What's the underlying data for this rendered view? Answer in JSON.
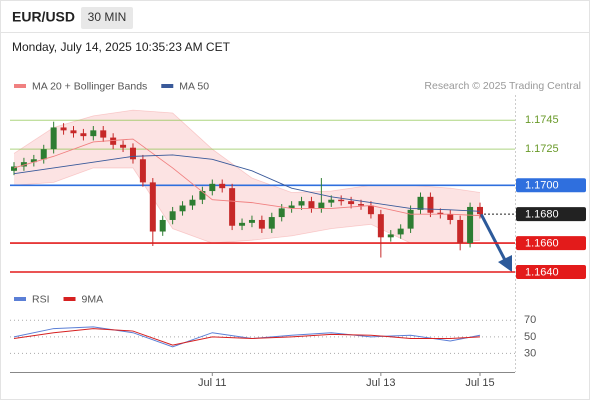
{
  "chart_data": {
    "type": "candlestick",
    "title": "EUR/USD",
    "timeframe": "30 MIN",
    "subtitle": "Monday, July 14, 2025 10:35:23 AM CET",
    "source": "Research © 2025 Trading Central",
    "categories": [
      null,
      null,
      null,
      null,
      null,
      null,
      null,
      null,
      null,
      null,
      null,
      null,
      null,
      null,
      null,
      null,
      null,
      null,
      null,
      null,
      "Jul 11",
      null,
      null,
      null,
      null,
      null,
      null,
      null,
      null,
      null,
      null,
      null,
      null,
      null,
      null,
      null,
      null,
      "Jul 13",
      null,
      null,
      null,
      null,
      null,
      null,
      null,
      null,
      null,
      "Jul 15"
    ],
    "open": [
      1.171,
      1.1713,
      1.1716,
      1.1718,
      1.1725,
      1.174,
      1.1738,
      1.1736,
      1.1734,
      1.1738,
      1.1733,
      1.1728,
      1.1726,
      1.1718,
      1.1702,
      1.1668,
      1.1676,
      1.1682,
      1.1686,
      1.169,
      1.1696,
      1.1701,
      1.1698,
      1.1672,
      1.1674,
      1.1676,
      1.167,
      1.1678,
      1.1684,
      1.1686,
      1.1689,
      1.1684,
      1.1688,
      1.169,
      1.1689,
      1.1687,
      1.1686,
      1.168,
      1.1664,
      1.1666,
      1.167,
      1.1683,
      1.1692,
      1.1681,
      1.168,
      1.1676,
      1.166,
      1.1685
    ],
    "high": [
      1.1716,
      1.1719,
      1.1721,
      1.1728,
      1.1744,
      1.1743,
      1.1741,
      1.1739,
      1.1741,
      1.1741,
      1.1736,
      1.1731,
      1.1729,
      1.1721,
      1.1705,
      1.1679,
      1.1685,
      1.1689,
      1.1693,
      1.1699,
      1.1704,
      1.1704,
      1.1701,
      1.1677,
      1.1679,
      1.1679,
      1.1681,
      1.1687,
      1.1689,
      1.1692,
      1.1692,
      1.1705,
      1.1693,
      1.1693,
      1.1692,
      1.169,
      1.1689,
      1.1683,
      1.1669,
      1.1673,
      1.1686,
      1.1695,
      1.1695,
      1.1684,
      1.1683,
      1.1679,
      1.1688,
      1.1688
    ],
    "low": [
      1.1707,
      1.171,
      1.1713,
      1.1715,
      1.1722,
      1.1735,
      1.1733,
      1.1731,
      1.1731,
      1.173,
      1.1725,
      1.1723,
      1.1715,
      1.1699,
      1.1658,
      1.1665,
      1.1673,
      1.1679,
      1.1683,
      1.1687,
      1.1693,
      1.1695,
      1.1669,
      1.1669,
      1.1671,
      1.1667,
      1.1667,
      1.1675,
      1.1681,
      1.1683,
      1.1681,
      1.1681,
      1.1685,
      1.1686,
      1.1684,
      1.1683,
      1.1677,
      1.165,
      1.1661,
      1.1663,
      1.1667,
      1.168,
      1.1678,
      1.1677,
      1.1673,
      1.1655,
      1.1657,
      1.1677
    ],
    "close": [
      1.1713,
      1.1716,
      1.1718,
      1.1725,
      1.174,
      1.1738,
      1.1736,
      1.1734,
      1.1738,
      1.1733,
      1.1728,
      1.1726,
      1.1718,
      1.1702,
      1.1668,
      1.1676,
      1.1682,
      1.1686,
      1.169,
      1.1696,
      1.1701,
      1.1698,
      1.1672,
      1.1674,
      1.1676,
      1.167,
      1.1678,
      1.1684,
      1.1686,
      1.1689,
      1.1684,
      1.1688,
      1.169,
      1.1689,
      1.1687,
      1.1686,
      1.168,
      1.1664,
      1.1666,
      1.167,
      1.1683,
      1.1692,
      1.1681,
      1.168,
      1.1676,
      1.166,
      1.1685,
      1.168
    ],
    "up_color": "#2e7d32",
    "down_color": "#c62828",
    "ylim": [
      1.1631,
      1.1759
    ],
    "series": [
      {
        "name": "MA 20 + Bollinger Bands",
        "color": "#f08080",
        "x": [
          0,
          4,
          8,
          12,
          16,
          20,
          24,
          28,
          32,
          36,
          40,
          44,
          47
        ],
        "values": [
          1.1712,
          1.172,
          1.173,
          1.1732,
          1.1712,
          1.169,
          1.1688,
          1.1684,
          1.1684,
          1.1686,
          1.168,
          1.168,
          1.1679
        ],
        "upper": [
          1.1722,
          1.174,
          1.1748,
          1.1752,
          1.175,
          1.1725,
          1.1705,
          1.1695,
          1.1696,
          1.17,
          1.17,
          1.1698,
          1.1695
        ],
        "lower": [
          1.17,
          1.1702,
          1.1712,
          1.1712,
          1.167,
          1.166,
          1.1662,
          1.1665,
          1.167,
          1.1673,
          1.166,
          1.166,
          1.1662
        ]
      },
      {
        "name": "MA 50",
        "color": "#3a5a9a",
        "x": [
          0,
          4,
          8,
          12,
          16,
          20,
          24,
          28,
          32,
          36,
          40,
          44,
          47
        ],
        "values": [
          1.1708,
          1.1712,
          1.1716,
          1.172,
          1.1721,
          1.1718,
          1.171,
          1.1698,
          1.1692,
          1.1688,
          1.1684,
          1.1683,
          1.1682
        ]
      }
    ],
    "levels": [
      {
        "value": 1.1745,
        "color": "#8bc34a",
        "box": false
      },
      {
        "value": 1.1725,
        "color": "#8bc34a",
        "box": false
      },
      {
        "value": 1.17,
        "label": "1.1700",
        "color": "#2f6fde",
        "box": true
      },
      {
        "value": 1.168,
        "label": "1.1680",
        "color": "#222222",
        "box": true,
        "dotted": true
      },
      {
        "value": 1.166,
        "label": "1.1660",
        "color": "#e31b1b",
        "box": true
      },
      {
        "value": 1.164,
        "label": "1.1640",
        "color": "#e31b1b",
        "box": true
      }
    ],
    "rsi": {
      "ylim": [
        10,
        80
      ],
      "yticks": [
        70,
        50,
        30
      ],
      "series": [
        {
          "name": "RSI",
          "color": "#5b7fd6",
          "x": [
            0,
            4,
            8,
            12,
            16,
            20,
            24,
            28,
            32,
            36,
            40,
            44,
            47
          ],
          "values": [
            50,
            60,
            62,
            55,
            38,
            55,
            48,
            52,
            55,
            50,
            52,
            45,
            52
          ]
        },
        {
          "name": "9MA",
          "color": "#d62020",
          "x": [
            0,
            4,
            8,
            12,
            16,
            20,
            24,
            28,
            32,
            36,
            40,
            44,
            47
          ],
          "values": [
            48,
            55,
            60,
            57,
            40,
            50,
            48,
            50,
            53,
            52,
            48,
            48,
            50
          ]
        }
      ]
    }
  }
}
